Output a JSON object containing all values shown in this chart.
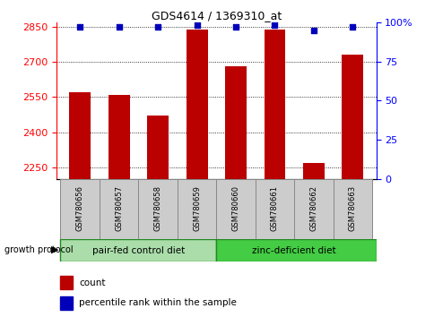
{
  "title": "GDS4614 / 1369310_at",
  "samples": [
    "GSM780656",
    "GSM780657",
    "GSM780658",
    "GSM780659",
    "GSM780660",
    "GSM780661",
    "GSM780662",
    "GSM780663"
  ],
  "counts": [
    2570,
    2560,
    2470,
    2840,
    2680,
    2840,
    2270,
    2730
  ],
  "percentiles": [
    97,
    97,
    97,
    98,
    97,
    98,
    95,
    97
  ],
  "ylim_left": [
    2200,
    2870
  ],
  "ylim_right": [
    0,
    100
  ],
  "yticks_left": [
    2250,
    2400,
    2550,
    2700,
    2850
  ],
  "yticks_right": [
    0,
    25,
    50,
    75,
    100
  ],
  "bar_color": "#bb0000",
  "dot_color": "#0000bb",
  "group1_label": "pair-fed control diet",
  "group2_label": "zinc-deficient diet",
  "group1_color": "#aaddaa",
  "group2_color": "#44cc44",
  "group_label": "growth protocol",
  "legend_count_label": "count",
  "legend_pct_label": "percentile rank within the sample",
  "bar_width": 0.55,
  "x_positions": [
    0,
    1,
    2,
    3,
    4,
    5,
    6,
    7
  ]
}
